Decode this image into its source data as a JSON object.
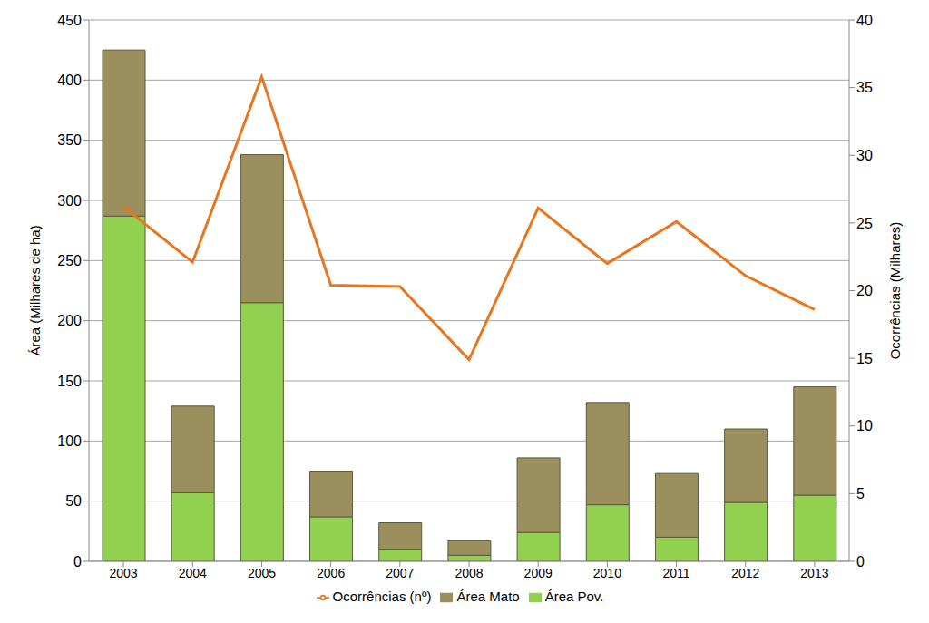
{
  "chart_data": {
    "type": "bar",
    "stacked": true,
    "grid": true,
    "legend": "bottom",
    "y_label": "Área (Milhares de ha)",
    "y2_label": "Ocorrências (Milhares)",
    "categories": [
      "2003",
      "2004",
      "2005",
      "2006",
      "2007",
      "2008",
      "2009",
      "2010",
      "2011",
      "2012",
      "2013"
    ],
    "ylim": [
      0,
      450
    ],
    "yticks": [
      0,
      50,
      100,
      150,
      200,
      250,
      300,
      350,
      400,
      450
    ],
    "y2lim": [
      0,
      40
    ],
    "y2ticks": [
      0,
      5,
      10,
      15,
      20,
      25,
      30,
      35,
      40
    ],
    "series": [
      {
        "name": "Área Pov.",
        "type": "bar",
        "color": "#92d050",
        "values": [
          287,
          57,
          215,
          37,
          10,
          5,
          24,
          47,
          20,
          49,
          55
        ]
      },
      {
        "name": "Área Mato",
        "type": "bar",
        "color": "#9b8f5e",
        "values": [
          138,
          72,
          123,
          38,
          22,
          12,
          62,
          85,
          53,
          61,
          90
        ]
      },
      {
        "name": "Ocorrências (nº)",
        "type": "line",
        "axis": "y2",
        "color": "#e8761e",
        "values": [
          26.2,
          22.1,
          35.8,
          20.4,
          20.3,
          14.9,
          26.1,
          22.0,
          25.1,
          21.1,
          18.6
        ]
      }
    ]
  }
}
